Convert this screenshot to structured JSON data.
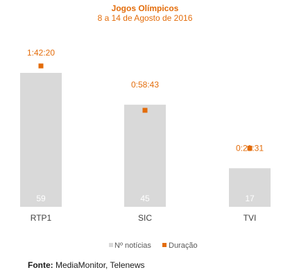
{
  "chart_data": {
    "type": "bar",
    "title": "Jogos Olímpicos",
    "subtitle": "8 a 14 de Agosto de 2016",
    "categories": [
      "RTP1",
      "SIC",
      "TVI"
    ],
    "series": [
      {
        "name": "Nº notícias",
        "type": "bar",
        "values": [
          59,
          45,
          17
        ],
        "data_labels": [
          "59",
          "45",
          "17"
        ]
      },
      {
        "name": "Duração",
        "type": "scatter",
        "values_seconds": [
          6140,
          3523,
          1291
        ],
        "data_labels": [
          "1:42:20",
          "0:58:43",
          "0:21:31"
        ]
      }
    ],
    "legend": {
      "position": "bottom"
    },
    "grid": false,
    "colors": {
      "bar": "#d9d9d9",
      "marker": "#e36c0a",
      "title": "#e36c0a",
      "bar_label": "#ffffff",
      "category_label": "#404040",
      "legend_text": "#595959"
    }
  },
  "source": {
    "label": "Fonte:",
    "text": "MediaMonitor, Telenews"
  }
}
